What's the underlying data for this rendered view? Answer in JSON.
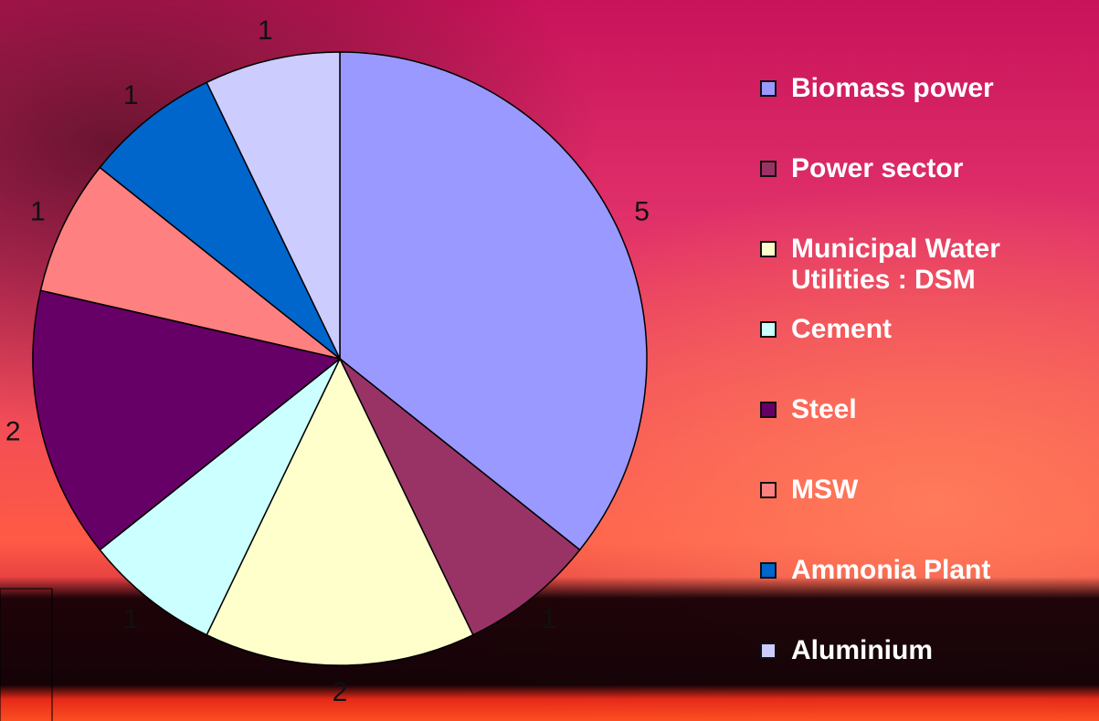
{
  "chart_data": {
    "type": "pie",
    "categories": [
      "Biomass power",
      "Power sector",
      "Municipal Water Utilities : DSM",
      "Cement",
      "Steel",
      "MSW",
      "Ammonia Plant",
      "Aluminium"
    ],
    "values": [
      5,
      1,
      2,
      1,
      2,
      1,
      1,
      1
    ],
    "colors": [
      "#9999ff",
      "#993366",
      "#ffffcc",
      "#ccffff",
      "#660066",
      "#ff8080",
      "#0066cc",
      "#ccccff"
    ],
    "legend": "right"
  }
}
